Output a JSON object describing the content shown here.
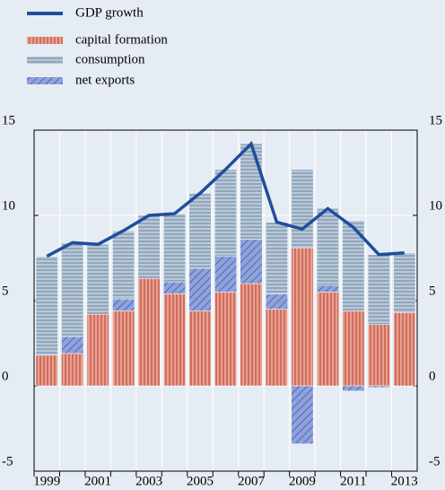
{
  "chart_data": {
    "type": "bar",
    "categories": [
      "1999",
      null,
      "2001",
      null,
      "2003",
      null,
      "2005",
      null,
      "2007",
      null,
      "2009",
      null,
      "2011",
      null,
      "2013"
    ],
    "series": [
      {
        "name": "GDP growth",
        "type": "line",
        "color": "#1f4e9c",
        "values": [
          7.6,
          8.4,
          8.3,
          9.1,
          10.0,
          10.1,
          11.3,
          12.7,
          14.2,
          9.6,
          9.2,
          10.4,
          9.3,
          7.7,
          7.8
        ]
      },
      {
        "name": "capital formation",
        "color": "#e8a090",
        "values": [
          1.8,
          1.9,
          4.2,
          4.4,
          6.3,
          5.4,
          4.4,
          5.5,
          6.0,
          4.5,
          8.1,
          5.5,
          4.4,
          3.6,
          4.3
        ]
      },
      {
        "name": "consumption",
        "color": "#b8c8d8",
        "values": [
          5.8,
          5.5,
          4.1,
          4.0,
          3.7,
          4.0,
          4.4,
          5.1,
          5.6,
          4.2,
          4.6,
          4.5,
          5.3,
          4.1,
          3.5
        ]
      },
      {
        "name": "net exports",
        "color": "#8fa3da",
        "values": [
          0,
          1.0,
          0,
          0.7,
          0,
          0.7,
          2.5,
          2.1,
          2.6,
          0.9,
          -3.4,
          0.4,
          -0.3,
          -0.1,
          0
        ]
      }
    ],
    "ylim": [
      -5,
      15
    ],
    "yticks": [
      -5,
      0,
      5,
      10,
      15
    ],
    "grid": true
  }
}
